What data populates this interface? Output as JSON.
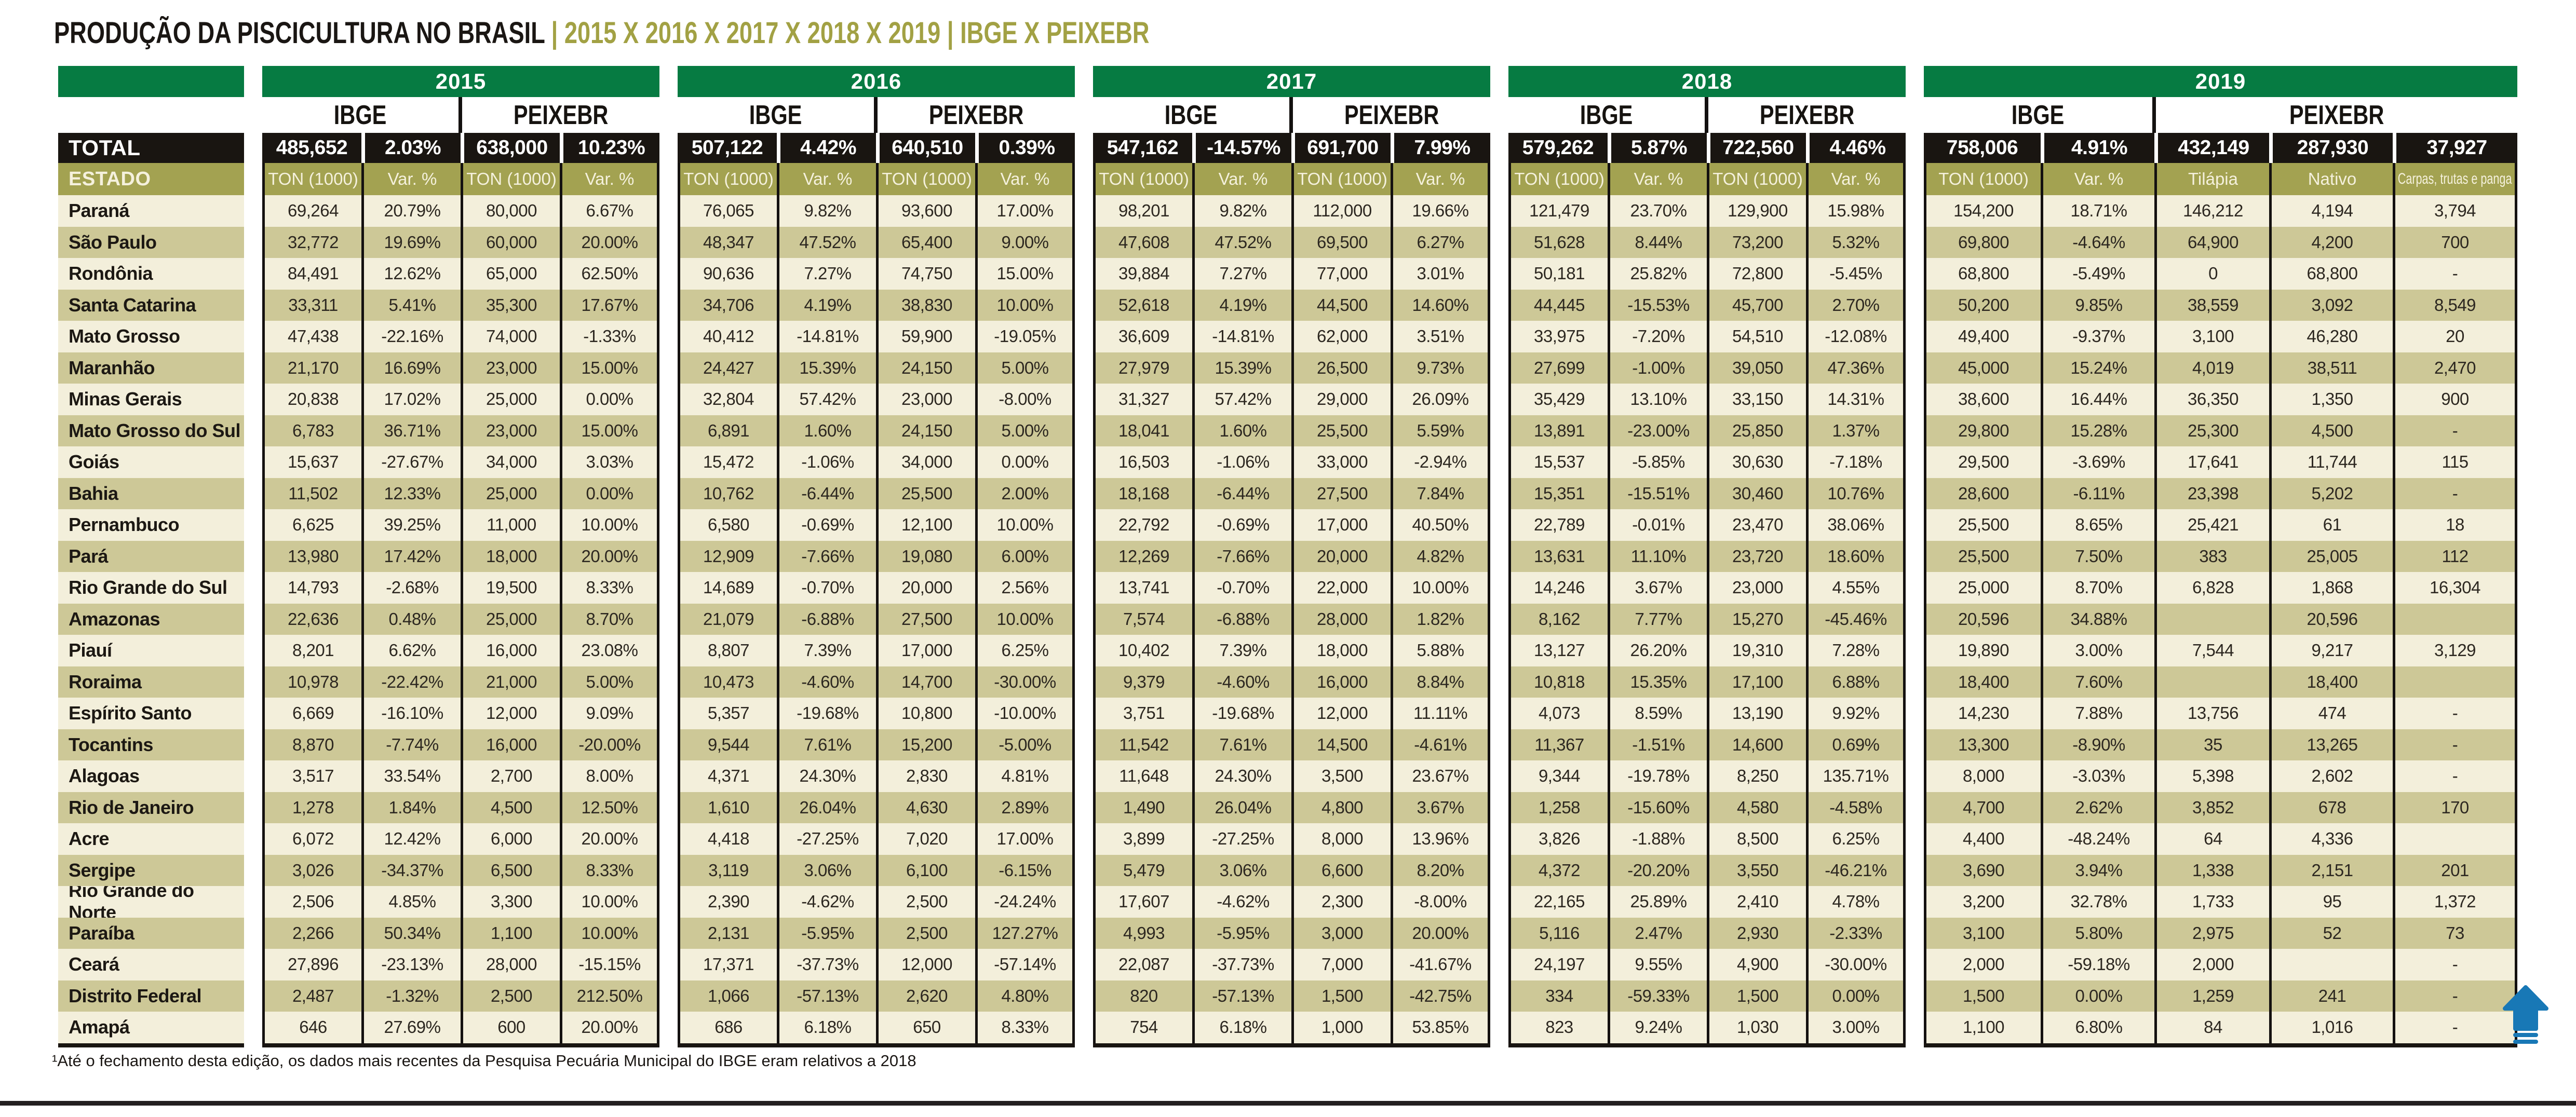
{
  "title": {
    "main": "PRODUÇÃO DA PISCICULTURA NO BRASIL ",
    "accent": "| 2015 X 2016 X 2017 X 2018 X 2019 | IBGE X PEIXEBR"
  },
  "footnote": "¹Até o fechamento desta edição, os dados mais recentes da Pesquisa Pecuária Municipal do IBGE eram relativos a 2018",
  "colors": {
    "green_header": "#067b42",
    "black_row": "#191511",
    "olive_row": "#a3a251",
    "cream_row": "#f3efdb",
    "tan_row": "#cdc897",
    "title_accent": "#a2a144",
    "arrow_blue": "#1878b6",
    "bottom_rule": "#231f20"
  },
  "chart_data": {
    "type": "table",
    "title": "PRODUÇÃO DA PISCICULTURA NO BRASIL | 2015 X 2016 X 2017 X 2018 X 2019 | IBGE X PEIXEBR",
    "total_label": "TOTAL",
    "estado_label": "ESTADO",
    "years": [
      {
        "label": "2015",
        "agencies": [
          "IBGE",
          "PEIXEBR"
        ],
        "col_headers": [
          "TON (1000)",
          "Var. %",
          "TON (1000)",
          "Var. %"
        ],
        "total": [
          "485,652",
          "2.03%",
          "638,000",
          "10.23%"
        ]
      },
      {
        "label": "2016",
        "agencies": [
          "IBGE",
          "PEIXEBR"
        ],
        "col_headers": [
          "TON (1000)",
          "Var. %",
          "TON (1000)",
          "Var. %"
        ],
        "total": [
          "507,122",
          "4.42%",
          "640,510",
          "0.39%"
        ]
      },
      {
        "label": "2017",
        "agencies": [
          "IBGE",
          "PEIXEBR"
        ],
        "col_headers": [
          "TON (1000)",
          "Var. %",
          "TON (1000)",
          "Var. %"
        ],
        "total": [
          "547,162",
          "-14.57%",
          "691,700",
          "7.99%"
        ]
      },
      {
        "label": "2018",
        "agencies": [
          "IBGE",
          "PEIXEBR"
        ],
        "col_headers": [
          "TON (1000)",
          "Var. %",
          "TON (1000)",
          "Var. %"
        ],
        "total": [
          "579,262",
          "5.87%",
          "722,560",
          "4.46%"
        ]
      },
      {
        "label": "2019",
        "agencies": [
          "IBGE",
          "PEIXEBR"
        ],
        "col_headers": [
          "TON (1000)",
          "Var. %",
          "Tilápia",
          "Nativo",
          "Carpas, trutas e panga"
        ],
        "total": [
          "758,006",
          "4.91%",
          "432,149",
          "287,930",
          "37,927"
        ]
      }
    ],
    "rows": [
      {
        "state": "Paraná",
        "values": [
          [
            "69,264",
            "20.79%",
            "80,000",
            "6.67%"
          ],
          [
            "76,065",
            "9.82%",
            "93,600",
            "17.00%"
          ],
          [
            "98,201",
            "9.82%",
            "112,000",
            "19.66%"
          ],
          [
            "121,479",
            "23.70%",
            "129,900",
            "15.98%"
          ],
          [
            "154,200",
            "18.71%",
            "146,212",
            "4,194",
            "3,794"
          ]
        ]
      },
      {
        "state": "São Paulo",
        "values": [
          [
            "32,772",
            "19.69%",
            "60,000",
            "20.00%"
          ],
          [
            "48,347",
            "47.52%",
            "65,400",
            "9.00%"
          ],
          [
            "47,608",
            "47.52%",
            "69,500",
            "6.27%"
          ],
          [
            "51,628",
            "8.44%",
            "73,200",
            "5.32%"
          ],
          [
            "69,800",
            "-4.64%",
            "64,900",
            "4,200",
            "700"
          ]
        ]
      },
      {
        "state": "Rondônia",
        "values": [
          [
            "84,491",
            "12.62%",
            "65,000",
            "62.50%"
          ],
          [
            "90,636",
            "7.27%",
            "74,750",
            "15.00%"
          ],
          [
            "39,884",
            "7.27%",
            "77,000",
            "3.01%"
          ],
          [
            "50,181",
            "25.82%",
            "72,800",
            "-5.45%"
          ],
          [
            "68,800",
            "-5.49%",
            "0",
            "68,800",
            "-"
          ]
        ]
      },
      {
        "state": "Santa Catarina",
        "values": [
          [
            "33,311",
            "5.41%",
            "35,300",
            "17.67%"
          ],
          [
            "34,706",
            "4.19%",
            "38,830",
            "10.00%"
          ],
          [
            "52,618",
            "4.19%",
            "44,500",
            "14.60%"
          ],
          [
            "44,445",
            "-15.53%",
            "45,700",
            "2.70%"
          ],
          [
            "50,200",
            "9.85%",
            "38,559",
            "3,092",
            "8,549"
          ]
        ]
      },
      {
        "state": "Mato Grosso",
        "values": [
          [
            "47,438",
            "-22.16%",
            "74,000",
            "-1.33%"
          ],
          [
            "40,412",
            "-14.81%",
            "59,900",
            "-19.05%"
          ],
          [
            "36,609",
            "-14.81%",
            "62,000",
            "3.51%"
          ],
          [
            "33,975",
            "-7.20%",
            "54,510",
            "-12.08%"
          ],
          [
            "49,400",
            "-9.37%",
            "3,100",
            "46,280",
            "20"
          ]
        ]
      },
      {
        "state": "Maranhão",
        "values": [
          [
            "21,170",
            "16.69%",
            "23,000",
            "15.00%"
          ],
          [
            "24,427",
            "15.39%",
            "24,150",
            "5.00%"
          ],
          [
            "27,979",
            "15.39%",
            "26,500",
            "9.73%"
          ],
          [
            "27,699",
            "-1.00%",
            "39,050",
            "47.36%"
          ],
          [
            "45,000",
            "15.24%",
            "4,019",
            "38,511",
            "2,470"
          ]
        ]
      },
      {
        "state": "Minas Gerais",
        "values": [
          [
            "20,838",
            "17.02%",
            "25,000",
            "0.00%"
          ],
          [
            "32,804",
            "57.42%",
            "23,000",
            "-8.00%"
          ],
          [
            "31,327",
            "57.42%",
            "29,000",
            "26.09%"
          ],
          [
            "35,429",
            "13.10%",
            "33,150",
            "14.31%"
          ],
          [
            "38,600",
            "16.44%",
            "36,350",
            "1,350",
            "900"
          ]
        ]
      },
      {
        "state": "Mato Grosso do Sul",
        "values": [
          [
            "6,783",
            "36.71%",
            "23,000",
            "15.00%"
          ],
          [
            "6,891",
            "1.60%",
            "24,150",
            "5.00%"
          ],
          [
            "18,041",
            "1.60%",
            "25,500",
            "5.59%"
          ],
          [
            "13,891",
            "-23.00%",
            "25,850",
            "1.37%"
          ],
          [
            "29,800",
            "15.28%",
            "25,300",
            "4,500",
            "-"
          ]
        ]
      },
      {
        "state": "Goiás",
        "values": [
          [
            "15,637",
            "-27.67%",
            "34,000",
            "3.03%"
          ],
          [
            "15,472",
            "-1.06%",
            "34,000",
            "0.00%"
          ],
          [
            "16,503",
            "-1.06%",
            "33,000",
            "-2.94%"
          ],
          [
            "15,537",
            "-5.85%",
            "30,630",
            "-7.18%"
          ],
          [
            "29,500",
            "-3.69%",
            "17,641",
            "11,744",
            "115"
          ]
        ]
      },
      {
        "state": "Bahia",
        "values": [
          [
            "11,502",
            "12.33%",
            "25,000",
            "0.00%"
          ],
          [
            "10,762",
            "-6.44%",
            "25,500",
            "2.00%"
          ],
          [
            "18,168",
            "-6.44%",
            "27,500",
            "7.84%"
          ],
          [
            "15,351",
            "-15.51%",
            "30,460",
            "10.76%"
          ],
          [
            "28,600",
            "-6.11%",
            "23,398",
            "5,202",
            "-"
          ]
        ]
      },
      {
        "state": "Pernambuco",
        "values": [
          [
            "6,625",
            "39.25%",
            "11,000",
            "10.00%"
          ],
          [
            "6,580",
            "-0.69%",
            "12,100",
            "10.00%"
          ],
          [
            "22,792",
            "-0.69%",
            "17,000",
            "40.50%"
          ],
          [
            "22,789",
            "-0.01%",
            "23,470",
            "38.06%"
          ],
          [
            "25,500",
            "8.65%",
            "25,421",
            "61",
            "18"
          ]
        ]
      },
      {
        "state": "Pará",
        "values": [
          [
            "13,980",
            "17.42%",
            "18,000",
            "20.00%"
          ],
          [
            "12,909",
            "-7.66%",
            "19,080",
            "6.00%"
          ],
          [
            "12,269",
            "-7.66%",
            "20,000",
            "4.82%"
          ],
          [
            "13,631",
            "11.10%",
            "23,720",
            "18.60%"
          ],
          [
            "25,500",
            "7.50%",
            "383",
            "25,005",
            "112"
          ]
        ]
      },
      {
        "state": "Rio Grande do Sul",
        "values": [
          [
            "14,793",
            "-2.68%",
            "19,500",
            "8.33%"
          ],
          [
            "14,689",
            "-0.70%",
            "20,000",
            "2.56%"
          ],
          [
            "13,741",
            "-0.70%",
            "22,000",
            "10.00%"
          ],
          [
            "14,246",
            "3.67%",
            "23,000",
            "4.55%"
          ],
          [
            "25,000",
            "8.70%",
            "6,828",
            "1,868",
            "16,304"
          ]
        ]
      },
      {
        "state": "Amazonas",
        "values": [
          [
            "22,636",
            "0.48%",
            "25,000",
            "8.70%"
          ],
          [
            "21,079",
            "-6.88%",
            "27,500",
            "10.00%"
          ],
          [
            "7,574",
            "-6.88%",
            "28,000",
            "1.82%"
          ],
          [
            "8,162",
            "7.77%",
            "15,270",
            "-45.46%"
          ],
          [
            "20,596",
            "34.88%",
            "",
            "20,596",
            ""
          ]
        ]
      },
      {
        "state": "Piauí",
        "values": [
          [
            "8,201",
            "6.62%",
            "16,000",
            "23.08%"
          ],
          [
            "8,807",
            "7.39%",
            "17,000",
            "6.25%"
          ],
          [
            "10,402",
            "7.39%",
            "18,000",
            "5.88%"
          ],
          [
            "13,127",
            "26.20%",
            "19,310",
            "7.28%"
          ],
          [
            "19,890",
            "3.00%",
            "7,544",
            "9,217",
            "3,129"
          ]
        ]
      },
      {
        "state": "Roraima",
        "values": [
          [
            "10,978",
            "-22.42%",
            "21,000",
            "5.00%"
          ],
          [
            "10,473",
            "-4.60%",
            "14,700",
            "-30.00%"
          ],
          [
            "9,379",
            "-4.60%",
            "16,000",
            "8.84%"
          ],
          [
            "10,818",
            "15.35%",
            "17,100",
            "6.88%"
          ],
          [
            "18,400",
            "7.60%",
            "",
            "18,400",
            ""
          ]
        ]
      },
      {
        "state": "Espírito Santo",
        "values": [
          [
            "6,669",
            "-16.10%",
            "12,000",
            "9.09%"
          ],
          [
            "5,357",
            "-19.68%",
            "10,800",
            "-10.00%"
          ],
          [
            "3,751",
            "-19.68%",
            "12,000",
            "11.11%"
          ],
          [
            "4,073",
            "8.59%",
            "13,190",
            "9.92%"
          ],
          [
            "14,230",
            "7.88%",
            "13,756",
            "474",
            "-"
          ]
        ]
      },
      {
        "state": "Tocantins",
        "values": [
          [
            "8,870",
            "-7.74%",
            "16,000",
            "-20.00%"
          ],
          [
            "9,544",
            "7.61%",
            "15,200",
            "-5.00%"
          ],
          [
            "11,542",
            "7.61%",
            "14,500",
            "-4.61%"
          ],
          [
            "11,367",
            "-1.51%",
            "14,600",
            "0.69%"
          ],
          [
            "13,300",
            "-8.90%",
            "35",
            "13,265",
            "-"
          ]
        ]
      },
      {
        "state": "Alagoas",
        "values": [
          [
            "3,517",
            "33.54%",
            "2,700",
            "8.00%"
          ],
          [
            "4,371",
            "24.30%",
            "2,830",
            "4.81%"
          ],
          [
            "11,648",
            "24.30%",
            "3,500",
            "23.67%"
          ],
          [
            "9,344",
            "-19.78%",
            "8,250",
            "135.71%"
          ],
          [
            "8,000",
            "-3.03%",
            "5,398",
            "2,602",
            "-"
          ]
        ]
      },
      {
        "state": "Rio de Janeiro",
        "values": [
          [
            "1,278",
            "1.84%",
            "4,500",
            "12.50%"
          ],
          [
            "1,610",
            "26.04%",
            "4,630",
            "2.89%"
          ],
          [
            "1,490",
            "26.04%",
            "4,800",
            "3.67%"
          ],
          [
            "1,258",
            "-15.60%",
            "4,580",
            "-4.58%"
          ],
          [
            "4,700",
            "2.62%",
            "3,852",
            "678",
            "170"
          ]
        ]
      },
      {
        "state": "Acre",
        "values": [
          [
            "6,072",
            "12.42%",
            "6,000",
            "20.00%"
          ],
          [
            "4,418",
            "-27.25%",
            "7,020",
            "17.00%"
          ],
          [
            "3,899",
            "-27.25%",
            "8,000",
            "13.96%"
          ],
          [
            "3,826",
            "-1.88%",
            "8,500",
            "6.25%"
          ],
          [
            "4,400",
            "-48.24%",
            "64",
            "4,336",
            ""
          ]
        ]
      },
      {
        "state": "Sergipe",
        "values": [
          [
            "3,026",
            "-34.37%",
            "6,500",
            "8.33%"
          ],
          [
            "3,119",
            "3.06%",
            "6,100",
            "-6.15%"
          ],
          [
            "5,479",
            "3.06%",
            "6,600",
            "8.20%"
          ],
          [
            "4,372",
            "-20.20%",
            "3,550",
            "-46.21%"
          ],
          [
            "3,690",
            "3.94%",
            "1,338",
            "2,151",
            "201"
          ]
        ]
      },
      {
        "state": "Rio Grande do Norte",
        "values": [
          [
            "2,506",
            "4.85%",
            "3,300",
            "10.00%"
          ],
          [
            "2,390",
            "-4.62%",
            "2,500",
            "-24.24%"
          ],
          [
            "17,607",
            "-4.62%",
            "2,300",
            "-8.00%"
          ],
          [
            "22,165",
            "25.89%",
            "2,410",
            "4.78%"
          ],
          [
            "3,200",
            "32.78%",
            "1,733",
            "95",
            "1,372"
          ]
        ]
      },
      {
        "state": "Paraíba",
        "values": [
          [
            "2,266",
            "50.34%",
            "1,100",
            "10.00%"
          ],
          [
            "2,131",
            "-5.95%",
            "2,500",
            "127.27%"
          ],
          [
            "4,993",
            "-5.95%",
            "3,000",
            "20.00%"
          ],
          [
            "5,116",
            "2.47%",
            "2,930",
            "-2.33%"
          ],
          [
            "3,100",
            "5.80%",
            "2,975",
            "52",
            "73"
          ]
        ]
      },
      {
        "state": "Ceará",
        "values": [
          [
            "27,896",
            "-23.13%",
            "28,000",
            "-15.15%"
          ],
          [
            "17,371",
            "-37.73%",
            "12,000",
            "-57.14%"
          ],
          [
            "22,087",
            "-37.73%",
            "7,000",
            "-41.67%"
          ],
          [
            "24,197",
            "9.55%",
            "4,900",
            "-30.00%"
          ],
          [
            "2,000",
            "-59.18%",
            "2,000",
            "",
            "-"
          ]
        ]
      },
      {
        "state": "Distrito Federal",
        "values": [
          [
            "2,487",
            "-1.32%",
            "2,500",
            "212.50%"
          ],
          [
            "1,066",
            "-57.13%",
            "2,620",
            "4.80%"
          ],
          [
            "820",
            "-57.13%",
            "1,500",
            "-42.75%"
          ],
          [
            "334",
            "-59.33%",
            "1,500",
            "0.00%"
          ],
          [
            "1,500",
            "0.00%",
            "1,259",
            "241",
            "-"
          ]
        ]
      },
      {
        "state": "Amapá",
        "values": [
          [
            "646",
            "27.69%",
            "600",
            "20.00%"
          ],
          [
            "686",
            "6.18%",
            "650",
            "8.33%"
          ],
          [
            "754",
            "6.18%",
            "1,000",
            "53.85%"
          ],
          [
            "823",
            "9.24%",
            "1,030",
            "3.00%"
          ],
          [
            "1,100",
            "6.80%",
            "84",
            "1,016",
            "-"
          ]
        ]
      }
    ]
  }
}
